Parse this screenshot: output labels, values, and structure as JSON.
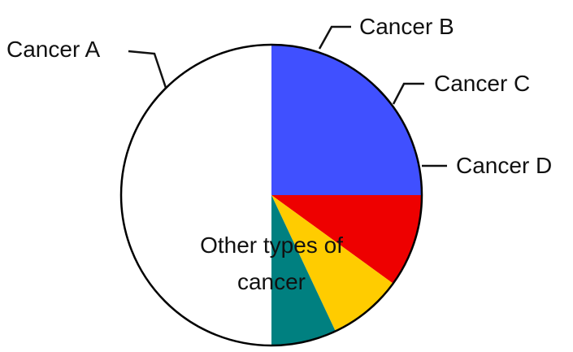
{
  "chart_data": {
    "type": "pie",
    "slices": [
      {
        "label": "Cancer A",
        "value": 25,
        "color": "#4050FF"
      },
      {
        "label": "Cancer B",
        "value": 10,
        "color": "#EE0000"
      },
      {
        "label": "Cancer C",
        "value": 8,
        "color": "#FFCC00"
      },
      {
        "label": "Cancer D",
        "value": 7,
        "color": "#008080"
      },
      {
        "label": "Other types of cancer",
        "value": 50,
        "color": "#FFFFFF"
      }
    ],
    "other_label_lines": [
      "Other types of",
      "cancer"
    ],
    "outline_color": "#000000",
    "start_angle": "12 o'clock, clockwise"
  }
}
